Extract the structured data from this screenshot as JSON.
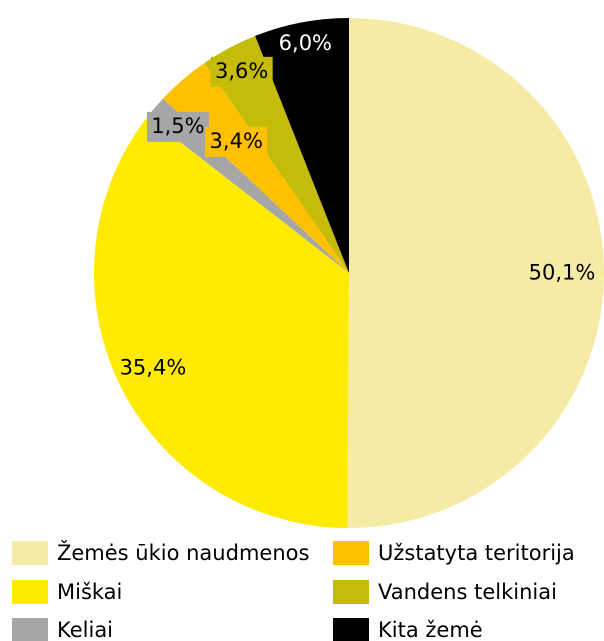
{
  "chart_data": {
    "type": "pie",
    "categories": [
      "Žemės ūkio naudmenos",
      "Miškai",
      "Keliai",
      "Užstatyta teritorija",
      "Vandens telkiniai",
      "Kita žemė"
    ],
    "values": [
      50.1,
      35.4,
      1.5,
      3.4,
      3.6,
      6.0
    ],
    "value_labels": [
      "50,1%",
      "35,4%",
      "1,5%",
      "3,4%",
      "3,6%",
      "6,0%"
    ],
    "colors": [
      "#f5eba5",
      "#ffeb00",
      "#a6a6a6",
      "#ffc000",
      "#c4bb0a",
      "#000000"
    ]
  }
}
